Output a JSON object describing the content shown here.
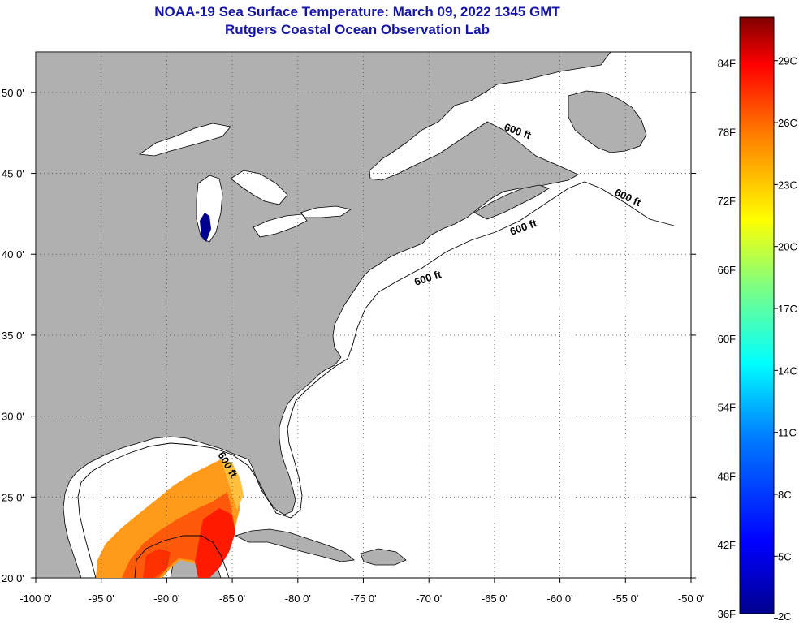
{
  "title": {
    "line1": "NOAA-19 Sea Surface Temperature:  March 09, 2022 1345 GMT",
    "line2": "Rutgers Coastal Ocean Observation Lab"
  },
  "map": {
    "lon_range": [
      -100,
      -50
    ],
    "lat_range": [
      20,
      52.5
    ],
    "lon_ticks": [
      {
        "value": -100,
        "label": "-100 0'"
      },
      {
        "value": -95,
        "label": "-95 0'"
      },
      {
        "value": -90,
        "label": "-90 0'"
      },
      {
        "value": -85,
        "label": "-85 0'"
      },
      {
        "value": -80,
        "label": "-80 0'"
      },
      {
        "value": -75,
        "label": "-75 0'"
      },
      {
        "value": -70,
        "label": "-70 0'"
      },
      {
        "value": -65,
        "label": "-65 0'"
      },
      {
        "value": -60,
        "label": "-60 0'"
      },
      {
        "value": -55,
        "label": "-55 0'"
      },
      {
        "value": -50,
        "label": "-50 0'"
      }
    ],
    "lat_ticks": [
      {
        "value": 50,
        "label": "50 0'"
      },
      {
        "value": 45,
        "label": "45 0'"
      },
      {
        "value": 40,
        "label": "40 0'"
      },
      {
        "value": 35,
        "label": "35 0'"
      },
      {
        "value": 30,
        "label": "30 0'"
      },
      {
        "value": 25,
        "label": "25 0'"
      },
      {
        "value": 20,
        "label": "20 0'"
      }
    ],
    "contour_labels": [
      "600 ft",
      "600 ft",
      "600 ft",
      "600 ft",
      "600 ft"
    ],
    "colors": {
      "land": "#b0b0b0",
      "ocean": "#ffffff",
      "grid": "#555555"
    }
  },
  "colorbar": {
    "range_f": [
      36,
      88
    ],
    "fahrenheit_labels": [
      "84F",
      "78F",
      "72F",
      "66F",
      "60F",
      "54F",
      "48F",
      "42F",
      "36F"
    ],
    "celsius_labels": [
      "29C",
      "26C",
      "23C",
      "20C",
      "17C",
      "14C",
      "11C",
      "8C",
      "5C",
      "2C"
    ],
    "colors": [
      "#00008f",
      "#0000ff",
      "#0080ff",
      "#00ffff",
      "#80ff80",
      "#ffff00",
      "#ff8000",
      "#ff0000",
      "#800000"
    ]
  }
}
